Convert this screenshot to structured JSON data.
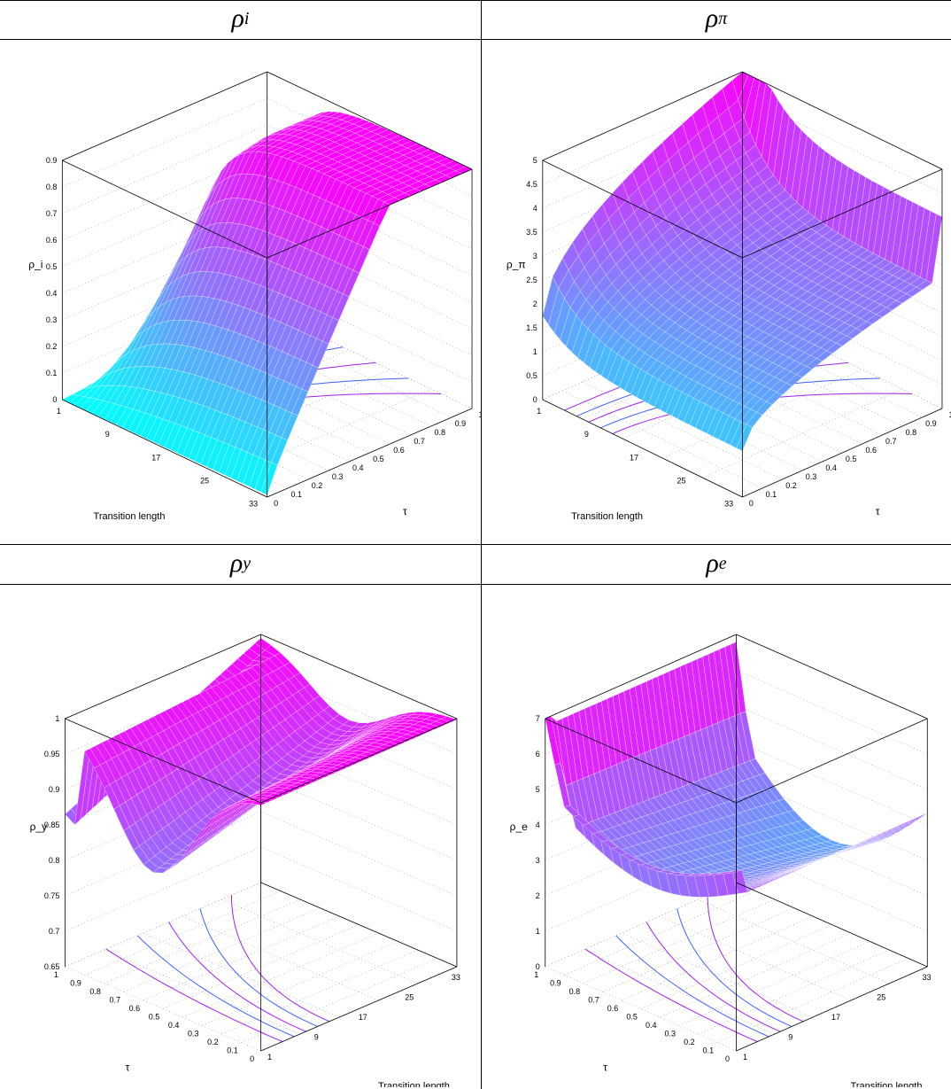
{
  "panels": [
    {
      "id": "rho_i",
      "title_base": "ρ",
      "title_sub": "i",
      "chart_data": {
        "type": "surface3d",
        "zlabel": "ρ_i",
        "xlabel": "Transition length",
        "ylabel": "τ",
        "zlim": [
          0,
          0.9
        ],
        "z_ticks": [
          "0",
          "0.1",
          "0.2",
          "0.3",
          "0.4",
          "0.5",
          "0.6",
          "0.7",
          "0.8",
          "0.9"
        ],
        "tl_ticks": [
          "1",
          "9",
          "17",
          "25",
          "33"
        ],
        "tau_ticks": [
          "0",
          "0.1",
          "0.2",
          "0.3",
          "0.4",
          "0.5",
          "0.6",
          "0.7",
          "0.8",
          "0.9",
          "1"
        ],
        "view": "A",
        "shape": "plateau_high"
      }
    },
    {
      "id": "rho_pi",
      "title_base": "ρ",
      "title_sub": "π",
      "chart_data": {
        "type": "surface3d",
        "zlabel": "ρ_π",
        "xlabel": "Transition length",
        "ylabel": "τ",
        "zlim": [
          0,
          5
        ],
        "z_ticks": [
          "0",
          "0.5",
          "1",
          "1.5",
          "2",
          "2.5",
          "3",
          "3.5",
          "4",
          "4.5",
          "5"
        ],
        "tl_ticks": [
          "1",
          "9",
          "17",
          "25",
          "33"
        ],
        "tau_ticks": [
          "0",
          "0.1",
          "0.2",
          "0.3",
          "0.4",
          "0.5",
          "0.6",
          "0.7",
          "0.8",
          "0.9",
          "1"
        ],
        "view": "A",
        "shape": "decay_pi"
      }
    },
    {
      "id": "rho_y",
      "title_base": "ρ",
      "title_sub": "y",
      "chart_data": {
        "type": "surface3d",
        "zlabel": "ρ_y",
        "xlabel": "Transition length",
        "ylabel": "τ",
        "zlim": [
          0.6,
          1
        ],
        "z_ticks": [
          "0.65",
          "0.7",
          "0.75",
          "0.8",
          "0.85",
          "0.9",
          "0.95",
          "1"
        ],
        "tl_ticks": [
          "1",
          "9",
          "17",
          "25",
          "33"
        ],
        "tau_ticks": [
          "0",
          "0.1",
          "0.2",
          "0.3",
          "0.4",
          "0.5",
          "0.6",
          "0.7",
          "0.8",
          "0.9",
          "1"
        ],
        "view": "B",
        "shape": "valley_y"
      }
    },
    {
      "id": "rho_e",
      "title_base": "ρ",
      "title_sub": "e",
      "chart_data": {
        "type": "surface3d",
        "zlabel": "ρ_e",
        "xlabel": "Transition length",
        "ylabel": "τ",
        "zlim": [
          0,
          7
        ],
        "z_ticks": [
          "0",
          "1",
          "2",
          "3",
          "4",
          "5",
          "6",
          "7"
        ],
        "tl_ticks": [
          "1",
          "9",
          "17",
          "25",
          "33"
        ],
        "tau_ticks": [
          "0",
          "0.1",
          "0.2",
          "0.3",
          "0.4",
          "0.5",
          "0.6",
          "0.7",
          "0.8",
          "0.9",
          "1"
        ],
        "view": "B",
        "shape": "bowl_e"
      }
    }
  ]
}
